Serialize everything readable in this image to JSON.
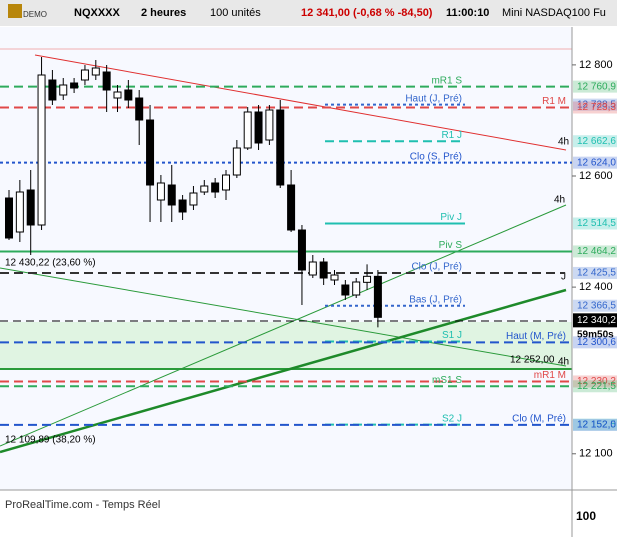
{
  "toolbar": {
    "logo": "DEMO",
    "symbol": "NQXXXX",
    "period": "2 heures",
    "units": "100 unités",
    "quote": "12 341,00 (-0,68 % -84,50)",
    "time": "11:00:10",
    "instrument": "Mini NASDAQ100 Fu"
  },
  "chart": {
    "ylim": [
      12034.8,
      12871.8
    ],
    "yticks": [
      {
        "value": 12800,
        "label": "12 800"
      },
      {
        "value": 12600,
        "label": "12 600"
      },
      {
        "value": 12400,
        "label": "12 400"
      },
      {
        "value": 12100,
        "label": "12 100"
      }
    ],
    "candles": [
      {
        "open": 12560.4,
        "high": 12574.8,
        "low": 12484.8,
        "close": 12488.4
      },
      {
        "open": 12499.2,
        "high": 12592.8,
        "low": 12481.2,
        "close": 12571.2
      },
      {
        "open": 12574.8,
        "high": 12610.8,
        "low": 12457.8,
        "close": 12511.8
      },
      {
        "open": 12511.8,
        "high": 12814.2,
        "low": 12502.8,
        "close": 12781.8
      },
      {
        "open": 12772.8,
        "high": 12790.8,
        "low": 12727.8,
        "close": 12736.8
      },
      {
        "open": 12745.8,
        "high": 12776.4,
        "low": 12736.8,
        "close": 12763.8
      },
      {
        "open": 12767.4,
        "high": 12776.4,
        "low": 12749.4,
        "close": 12758.4
      },
      {
        "open": 12772.8,
        "high": 12799.8,
        "low": 12763.8,
        "close": 12790.8
      },
      {
        "open": 12781.8,
        "high": 12808.8,
        "low": 12772.8,
        "close": 12794.4
      },
      {
        "open": 12787.2,
        "high": 12799.8,
        "low": 12715.2,
        "close": 12754.8
      },
      {
        "open": 12740.4,
        "high": 12763.8,
        "low": 12715.2,
        "close": 12751.2
      },
      {
        "open": 12754.8,
        "high": 12772.8,
        "low": 12722.4,
        "close": 12736.8
      },
      {
        "open": 12740.4,
        "high": 12754.8,
        "low": 12655.8,
        "close": 12700.8
      },
      {
        "open": 12700.8,
        "high": 12727.8,
        "low": 12517.2,
        "close": 12583.8
      },
      {
        "open": 12556.8,
        "high": 12601.8,
        "low": 12517.2,
        "close": 12587.4
      },
      {
        "open": 12583.8,
        "high": 12619.8,
        "low": 12517.2,
        "close": 12547.8
      },
      {
        "open": 12556.8,
        "high": 12565.8,
        "low": 12520.8,
        "close": 12535.2
      },
      {
        "open": 12547.8,
        "high": 12582.0,
        "low": 12538.8,
        "close": 12569.4
      },
      {
        "open": 12571.2,
        "high": 12592.8,
        "low": 12565.8,
        "close": 12582.0
      },
      {
        "open": 12587.4,
        "high": 12596.4,
        "low": 12560.4,
        "close": 12571.2
      },
      {
        "open": 12574.8,
        "high": 12610.8,
        "low": 12556.8,
        "close": 12601.8
      },
      {
        "open": 12601.8,
        "high": 12664.8,
        "low": 12596.4,
        "close": 12650.4
      },
      {
        "open": 12650.4,
        "high": 12724.2,
        "low": 12646.8,
        "close": 12715.2
      },
      {
        "open": 12715.2,
        "high": 12727.8,
        "low": 12646.8,
        "close": 12659.4
      },
      {
        "open": 12664.8,
        "high": 12727.8,
        "low": 12655.8,
        "close": 12718.8
      },
      {
        "open": 12718.8,
        "high": 12736.8,
        "low": 12578.4,
        "close": 12583.8
      },
      {
        "open": 12583.8,
        "high": 12610.8,
        "low": 12499.2,
        "close": 12502.8
      },
      {
        "open": 12502.8,
        "high": 12511.8,
        "low": 12367.8,
        "close": 12430.8
      },
      {
        "open": 12421.8,
        "high": 12457.8,
        "low": 12416.4,
        "close": 12445.2
      },
      {
        "open": 12445.2,
        "high": 12452.4,
        "low": 12403.8,
        "close": 12416.4
      },
      {
        "open": 12412.8,
        "high": 12430.8,
        "low": 12403.8,
        "close": 12421.8
      },
      {
        "open": 12403.8,
        "high": 12412.8,
        "low": 12376.8,
        "close": 12385.8
      },
      {
        "open": 12385.8,
        "high": 12416.4,
        "low": 12380.4,
        "close": 12409.2
      },
      {
        "open": 12408.6,
        "high": 12441.0,
        "low": 12394.8,
        "close": 12419.4
      },
      {
        "open": 12419.4,
        "high": 12430.8,
        "low": 12327.6,
        "close": 12345.6
      }
    ],
    "levels": [
      {
        "label": "mR1 S",
        "value": 12760.9,
        "value_label": "12 760,9",
        "color": "#2eab5c",
        "style": "dashed"
      },
      {
        "label": "Haut (J, Pré)",
        "value": 12728.5,
        "value_label": "12 728,5",
        "color": "#3366cc",
        "style": "dotted"
      },
      {
        "label": "R1 M",
        "value": 12723.3,
        "value_label": "12 723,3",
        "color": "#e04848",
        "style": "dashed"
      },
      {
        "label": "R1 J",
        "value": 12662.6,
        "value_label": "12 662,6",
        "color": "#1fbfb0",
        "style": "dashed"
      },
      {
        "label": "Clo (S, Pré)",
        "value": 12624.0,
        "value_label": "12 624,0",
        "color": "#2255cc",
        "style": "dotted"
      },
      {
        "label": "Piv J",
        "value": 12514.5,
        "value_label": "12 514,5",
        "color": "#1fbfb0",
        "style": "solid"
      },
      {
        "label": "Piv S",
        "value": 12464.2,
        "value_label": "12 464,2",
        "color": "#2eab5c",
        "style": "solid"
      },
      {
        "label": "Clo (J, Pré)",
        "value": 12425.5,
        "value_label": "12 425,5",
        "color": "#3366cc",
        "style": "dashed"
      },
      {
        "label": "Bas (J, Pré)",
        "value": 12366.5,
        "value_label": "12 366,5",
        "color": "#3366cc",
        "style": "dotted"
      },
      {
        "label": "S1 J",
        "value": 12302.0,
        "color": "#1fbfb0",
        "style": "dashed"
      },
      {
        "label": "Haut (M, Pré)",
        "value": 12300.6,
        "value_label": "12 300,6",
        "color": "#2255cc",
        "style": "dashed"
      },
      {
        "label": "mR1 M",
        "value": 12230.2,
        "value_label": "12 230,2",
        "color": "#e04848",
        "style": "dashed"
      },
      {
        "label": "mS1 S",
        "value": 12221.5,
        "value_label": "12 221,5",
        "color": "#2eab5c",
        "style": "dashed"
      },
      {
        "label": "S2 J",
        "value": 12152.5,
        "value_label": "12 152,5",
        "color": "#1fbfb0",
        "style": "dashed"
      },
      {
        "label": "Clo (M, Pré)",
        "value": 12152.0,
        "value_label": "12 152,0",
        "color": "#2255cc",
        "style": "dashed"
      }
    ],
    "current_price": {
      "value": 12340.2,
      "label": "12 340,2"
    },
    "countdown": "59m50s",
    "annotations": [
      "12 430,22 (23,60 %)",
      "12 109,89 (38,20 %)",
      "12 252,00",
      "4h",
      "4h",
      "4h",
      "J"
    ],
    "volume_axis_label": "100",
    "footer": "ProRealTime.com - Temps Réel"
  }
}
